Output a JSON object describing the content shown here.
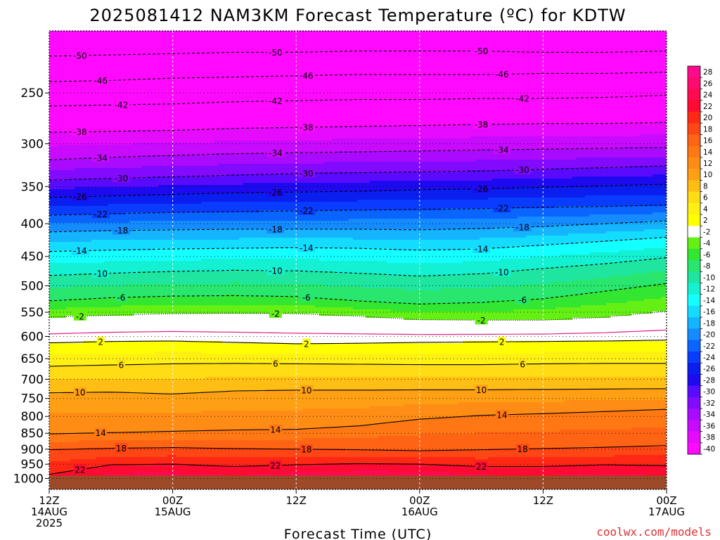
{
  "chart_data": {
    "type": "heatmap",
    "title": "2025081412 NAM3KM Forecast Temperature (ºC) for KDTW",
    "xlabel": "Forecast Time (UTC)",
    "ylabel": "",
    "credit": "coolwx.com/models",
    "x_axis": {
      "unit": "hours since 2025-08-14 12Z",
      "range": [
        0,
        60
      ],
      "ticks": [
        {
          "x": 0,
          "lines": [
            "12Z",
            "14AUG",
            "2025"
          ]
        },
        {
          "x": 12,
          "lines": [
            "00Z",
            "15AUG"
          ]
        },
        {
          "x": 24,
          "lines": [
            "12Z"
          ]
        },
        {
          "x": 36,
          "lines": [
            "00Z",
            "16AUG"
          ]
        },
        {
          "x": 48,
          "lines": [
            "12Z"
          ]
        },
        {
          "x": 60,
          "lines": [
            "00Z",
            "17AUG"
          ]
        }
      ]
    },
    "y_axis": {
      "unit": "hPa",
      "scale": "log",
      "range": [
        1040,
        200
      ],
      "ticks": [
        250,
        300,
        350,
        400,
        450,
        500,
        550,
        600,
        650,
        700,
        750,
        800,
        850,
        900,
        950,
        1000
      ]
    },
    "ground_level_hPa": 990,
    "colorbar": {
      "levels": [
        28,
        26,
        24,
        22,
        20,
        18,
        16,
        14,
        12,
        10,
        8,
        6,
        4,
        2,
        -2,
        -4,
        -6,
        -8,
        -10,
        -12,
        -14,
        -16,
        -18,
        -20,
        -22,
        -24,
        -26,
        -28,
        -30,
        -32,
        -34,
        -36,
        -38,
        -40
      ],
      "colors": [
        "#ff0a8c",
        "#ff0a6e",
        "#ff0a50",
        "#ff0a32",
        "#ff2814",
        "#ff4614",
        "#ff6414",
        "#ff7814",
        "#ff8c14",
        "#ffa014",
        "#ffbe14",
        "#ffdc14",
        "#fff014",
        "#ffff00",
        "#ffffff",
        "#64f014",
        "#32e632",
        "#28e66e",
        "#1ee6a0",
        "#14f0d2",
        "#14ffff",
        "#14dcff",
        "#14b4ff",
        "#148cff",
        "#0a64ff",
        "#0a3cff",
        "#0a1ef0",
        "#1e0af0",
        "#5a0aff",
        "#820aff",
        "#aa0aff",
        "#c80aff",
        "#e60aff",
        "#ff0aff"
      ]
    },
    "isotherms": [
      {
        "value": -50,
        "pressures": [
          219,
          218,
          217,
          216,
          216,
          215,
          215,
          215,
          216,
          216,
          215
        ]
      },
      {
        "value": -46,
        "pressures": [
          240,
          239,
          237,
          236,
          235,
          234,
          234,
          234,
          233,
          233,
          232
        ]
      },
      {
        "value": -42,
        "pressures": [
          262,
          261,
          260,
          258,
          257,
          256,
          256,
          255,
          255,
          254,
          252
        ]
      },
      {
        "value": -38,
        "pressures": [
          288,
          287,
          286,
          284,
          283,
          282,
          281,
          280,
          279,
          279,
          278
        ]
      },
      {
        "value": -34,
        "pressures": [
          318,
          315,
          313,
          311,
          310,
          309,
          308,
          307,
          306,
          305,
          304
        ]
      },
      {
        "value": -30,
        "pressures": [
          342,
          340,
          338,
          336,
          334,
          333,
          332,
          331,
          329,
          327,
          325
        ]
      },
      {
        "value": -26,
        "pressures": [
          364,
          362,
          360,
          358,
          357,
          356,
          354,
          353,
          351,
          349,
          347
        ]
      },
      {
        "value": -22,
        "pressures": [
          388,
          386,
          384,
          383,
          382,
          381,
          380,
          379,
          377,
          376,
          374
        ]
      },
      {
        "value": -18,
        "pressures": [
          412,
          410,
          409,
          408,
          408,
          408,
          409,
          407,
          404,
          400,
          396
        ]
      },
      {
        "value": -14,
        "pressures": [
          442,
          440,
          438,
          437,
          436,
          437,
          440,
          438,
          432,
          426,
          420
        ]
      },
      {
        "value": -10,
        "pressures": [
          482,
          478,
          475,
          473,
          474,
          478,
          483,
          479,
          470,
          462,
          452
        ]
      },
      {
        "value": -6,
        "pressures": [
          528,
          522,
          519,
          518,
          520,
          528,
          534,
          531,
          524,
          510,
          496
        ]
      },
      {
        "value": -2,
        "pressures": [
          560,
          556,
          553,
          552,
          553,
          558,
          565,
          566,
          566,
          560,
          548
        ]
      },
      {
        "value": 2,
        "pressures": [
          614,
          611,
          610,
          613,
          616,
          615,
          613,
          612,
          611,
          610,
          608
        ]
      },
      {
        "value": 6,
        "pressures": [
          668,
          665,
          662,
          661,
          662,
          663,
          664,
          664,
          662,
          661,
          661
        ]
      },
      {
        "value": 10,
        "pressures": [
          735,
          733,
          738,
          730,
          728,
          728,
          727,
          727,
          726,
          725,
          724
        ]
      },
      {
        "value": 14,
        "pressures": [
          852,
          848,
          844,
          840,
          838,
          828,
          808,
          797,
          792,
          786,
          780
        ]
      },
      {
        "value": 18,
        "pressures": [
          902,
          897,
          895,
          898,
          900,
          902,
          905,
          902,
          898,
          894,
          888
        ]
      },
      {
        "value": 22,
        "pressures": [
          985,
          952,
          950,
          958,
          952,
          948,
          950,
          958,
          958,
          952,
          955
        ]
      }
    ],
    "contour_times": [
      0,
      6,
      12,
      18,
      24,
      30,
      36,
      42,
      48,
      54,
      60
    ]
  }
}
